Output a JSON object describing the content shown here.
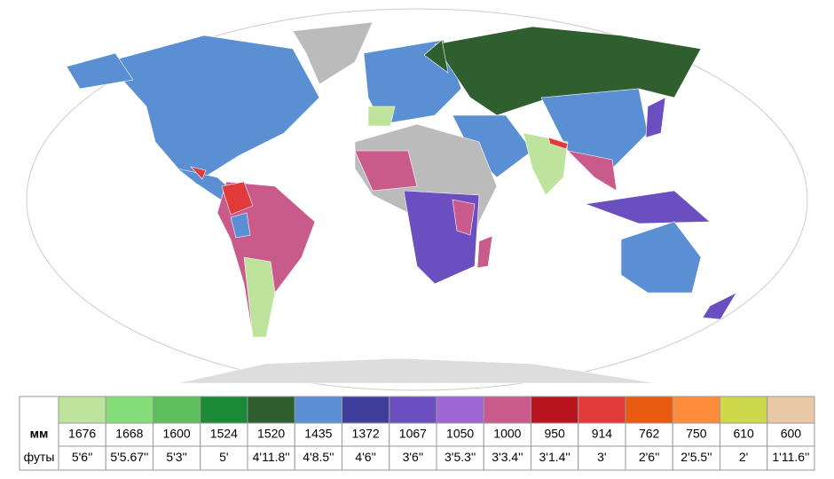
{
  "legend": {
    "mm_label": "мм",
    "ft_label": "футы",
    "items": [
      {
        "color": "#bde39c",
        "mm": 1676,
        "feet": "5'6''"
      },
      {
        "color": "#86de7a",
        "mm": 1668,
        "feet": "5'5.67''"
      },
      {
        "color": "#5cbf5c",
        "mm": 1600,
        "feet": "5'3''"
      },
      {
        "color": "#1a8a37",
        "mm": 1524,
        "feet": "5'"
      },
      {
        "color": "#2f5e2f",
        "mm": 1520,
        "feet": "4'11.8''"
      },
      {
        "color": "#5b8fd4",
        "mm": 1435,
        "feet": "4'8.5''"
      },
      {
        "color": "#3e3d9a",
        "mm": 1372,
        "feet": "4'6''"
      },
      {
        "color": "#6b4fc0",
        "mm": 1067,
        "feet": "3'6''"
      },
      {
        "color": "#a066d6",
        "mm": 1050,
        "feet": "3'5.3''"
      },
      {
        "color": "#c85a8c",
        "mm": 1000,
        "feet": "3'3.4''"
      },
      {
        "color": "#b81420",
        "mm": 950,
        "feet": "3'1.4''"
      },
      {
        "color": "#e23a3a",
        "mm": 914,
        "feet": "3'"
      },
      {
        "color": "#e85a10",
        "mm": 762,
        "feet": "2'6''"
      },
      {
        "color": "#ff8c3a",
        "mm": 750,
        "feet": "2'5.5''"
      },
      {
        "color": "#cdd94a",
        "mm": 610,
        "feet": "2'"
      },
      {
        "color": "#e8c8a6",
        "mm": 600,
        "feet": "1'11.6''"
      }
    ]
  }
}
